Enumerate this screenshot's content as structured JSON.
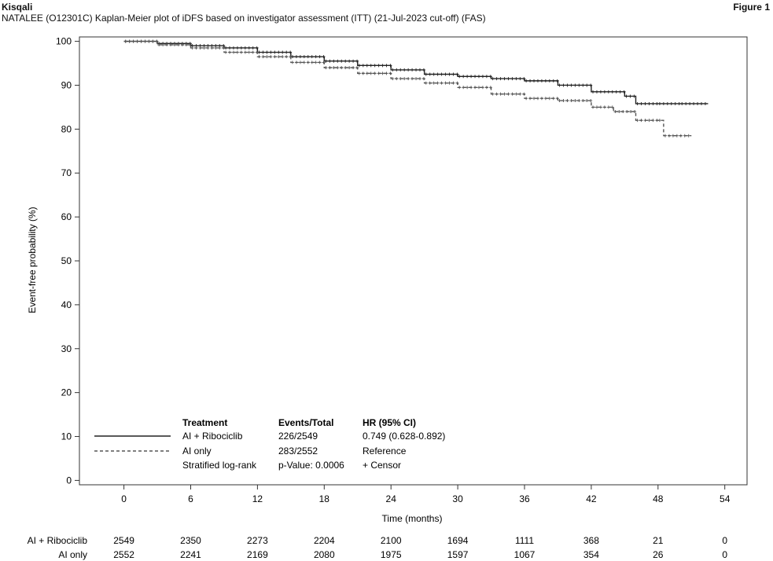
{
  "header": {
    "brand": "Kisqali",
    "figure_label": "Figure 1",
    "subtitle": "NATALEE (O12301C) Kaplan-Meier plot of iDFS based on investigator assessment (ITT) (21-Jul-2023 cut-off) (FAS)"
  },
  "legend": {
    "col_treatment": "Treatment",
    "col_events": "Events/Total",
    "col_hr": "HR (95% CI)",
    "rows": [
      {
        "name": "AI + Ribociclib",
        "events": "226/2549",
        "hr": "0.749 (0.628-0.892)"
      },
      {
        "name": "AI only",
        "events": "283/2552",
        "hr": "Reference"
      }
    ],
    "footer": {
      "name": "Stratified log-rank",
      "events": "p-Value: 0.0006",
      "hr": "+ Censor"
    }
  },
  "risk_table": {
    "rows": [
      {
        "label": "AI + Ribociclib",
        "counts": [
          "2549",
          "2350",
          "2273",
          "2204",
          "2100",
          "1694",
          "1111",
          "368",
          "21",
          "0"
        ]
      },
      {
        "label": "AI only",
        "counts": [
          "2552",
          "2241",
          "2169",
          "2080",
          "1975",
          "1597",
          "1067",
          "354",
          "26",
          "0"
        ]
      }
    ]
  },
  "chart_data": {
    "type": "line",
    "xlabel": "Time (months)",
    "ylabel": "Event-free probability (%)",
    "xlim": [
      -4,
      56
    ],
    "ylim": [
      -1,
      101
    ],
    "x_ticks": [
      0,
      6,
      12,
      18,
      24,
      30,
      36,
      42,
      48,
      54
    ],
    "y_ticks": [
      0,
      10,
      20,
      30,
      40,
      50,
      60,
      70,
      80,
      90,
      100
    ],
    "grid": false,
    "series": [
      {
        "name": "AI + Ribociclib",
        "color": "#222222",
        "line_style": "solid",
        "x": [
          0,
          3,
          6,
          9,
          12,
          15,
          18,
          21,
          24,
          27,
          30,
          33,
          36,
          39,
          42,
          45,
          46,
          48,
          50,
          52.5
        ],
        "y": [
          100,
          99.5,
          99,
          98.5,
          97.5,
          96.5,
          95.5,
          94.5,
          93.5,
          92.5,
          92,
          91.5,
          91,
          90,
          88.5,
          87.5,
          85.8,
          85.8,
          85.8,
          85.8
        ]
      },
      {
        "name": "AI only",
        "color": "#555555",
        "line_style": "dashed",
        "x": [
          0,
          3,
          6,
          9,
          12,
          15,
          18,
          21,
          24,
          27,
          30,
          33,
          36,
          39,
          42,
          44,
          46,
          48,
          48.5,
          51
        ],
        "y": [
          100,
          99.2,
          98.5,
          97.5,
          96.5,
          95.2,
          94,
          92.7,
          91.5,
          90.5,
          89.5,
          88,
          87,
          86.5,
          85,
          84,
          82,
          82,
          78.5,
          78.5
        ]
      }
    ]
  }
}
